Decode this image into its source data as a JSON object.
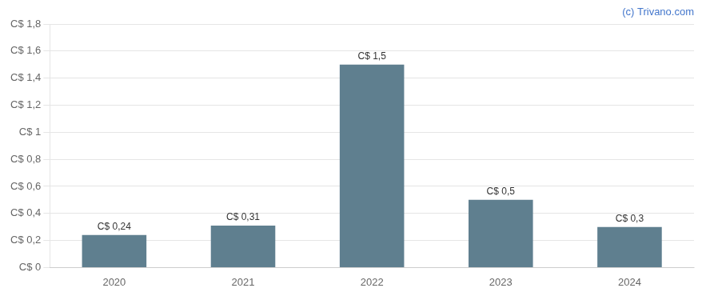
{
  "chart_data": {
    "type": "bar",
    "categories": [
      "2020",
      "2021",
      "2022",
      "2023",
      "2024"
    ],
    "values": [
      0.24,
      0.31,
      1.5,
      0.5,
      0.3
    ],
    "value_labels": [
      "C$ 0,24",
      "C$ 0,31",
      "C$ 1,5",
      "C$ 0,5",
      "C$ 0,3"
    ],
    "data_labels": true,
    "color": "#5f7f8f",
    "ylim": [
      0,
      1.8
    ],
    "yticks": [
      {
        "value": 0,
        "label": "C$ 0"
      },
      {
        "value": 0.2,
        "label": "C$ 0,2"
      },
      {
        "value": 0.4,
        "label": "C$ 0,4"
      },
      {
        "value": 0.6,
        "label": "C$ 0,6"
      },
      {
        "value": 0.8,
        "label": "C$ 0,8"
      },
      {
        "value": 1.0,
        "label": "C$ 1"
      },
      {
        "value": 1.2,
        "label": "C$ 1,2"
      },
      {
        "value": 1.4,
        "label": "C$ 1,4"
      },
      {
        "value": 1.6,
        "label": "C$ 1,6"
      },
      {
        "value": 1.8,
        "label": "C$ 1,8"
      }
    ],
    "grid": true,
    "annotations": [
      {
        "text": "(c) Trivano.com",
        "color": "#4477cc"
      }
    ]
  }
}
